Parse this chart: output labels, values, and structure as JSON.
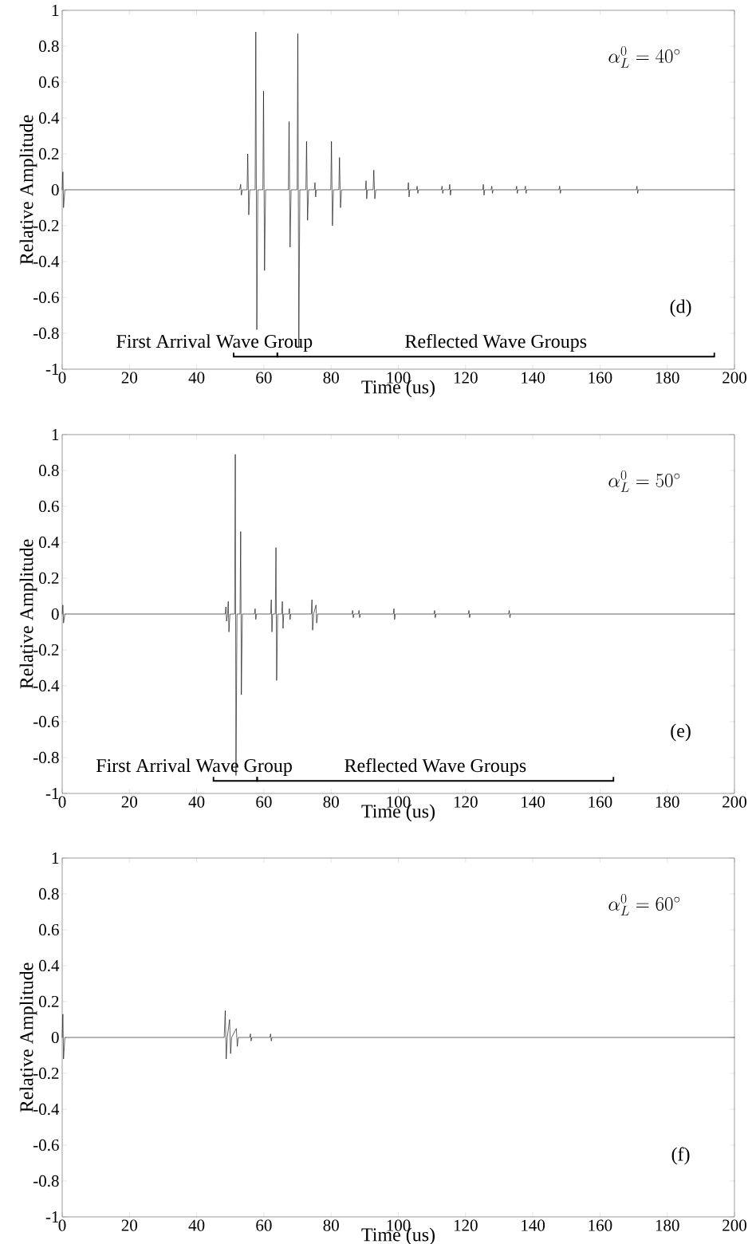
{
  "chart_data": [
    {
      "type": "line",
      "xlabel": "Time (us)",
      "ylabel": "Relative Amplitude",
      "xlim": [
        0,
        200
      ],
      "ylim": [
        -1,
        1
      ],
      "xticks": [
        0,
        20,
        40,
        60,
        80,
        100,
        120,
        140,
        160,
        180,
        200
      ],
      "yticks": [
        -1,
        -0.8,
        -0.6,
        -0.4,
        -0.2,
        0,
        0.2,
        0.4,
        0.6,
        0.8,
        1
      ],
      "marker": "none",
      "series": [
        {
          "color": "#000000",
          "x": [
            0,
            0.2,
            0.4,
            0.8,
            52.8,
            53.1,
            53.3,
            53.6,
            55.0,
            55.2,
            55.5,
            55.8,
            57.4,
            57.6,
            57.9,
            58.2,
            59.7,
            59.9,
            60.2,
            60.5,
            67.3,
            67.5,
            67.8,
            68.1,
            69.9,
            70.1,
            70.4,
            70.7,
            72.5,
            72.7,
            73.0,
            73.3,
            75.0,
            75.2,
            75.4,
            75.6,
            79.9,
            80.1,
            80.4,
            80.7,
            82.3,
            82.5,
            82.8,
            83.1,
            90.2,
            90.4,
            90.6,
            90.8,
            92.5,
            92.7,
            93.0,
            93.3,
            102.8,
            103.0,
            103.2,
            103.4,
            105.4,
            105.6,
            105.8,
            106.0,
            112.8,
            113.0,
            113.2,
            113.4,
            115.1,
            115.3,
            115.5,
            115.7,
            125.1,
            125.3,
            125.5,
            125.7,
            127.6,
            127.8,
            128.0,
            128.2,
            135.0,
            135.2,
            135.4,
            135.6,
            137.6,
            137.8,
            138.0,
            138.2,
            147.8,
            148.0,
            148.2,
            148.4,
            170.8,
            171.0,
            171.2,
            171.4,
            200
          ],
          "values": [
            0,
            0.1,
            -0.1,
            0,
            0,
            0.03,
            -0.03,
            0,
            0,
            0.2,
            -0.14,
            0,
            0,
            0.88,
            -0.78,
            0,
            0,
            0.55,
            -0.45,
            0,
            0,
            0.38,
            -0.32,
            0,
            0,
            0.87,
            -0.88,
            0,
            0,
            0.27,
            -0.17,
            0,
            0,
            0.04,
            -0.04,
            0,
            0,
            0.27,
            -0.2,
            0,
            0,
            0.18,
            -0.1,
            0,
            0,
            0.05,
            -0.05,
            0,
            0,
            0.11,
            -0.05,
            0,
            0,
            0.04,
            -0.04,
            0,
            0,
            0.02,
            -0.02,
            0,
            0,
            0.02,
            -0.02,
            0,
            0,
            0.03,
            -0.03,
            0,
            0,
            0.03,
            -0.03,
            0,
            0,
            0.02,
            -0.02,
            0,
            0,
            0.02,
            -0.02,
            0,
            0,
            0.02,
            -0.02,
            0,
            0,
            0.02,
            -0.02,
            0,
            0,
            0.02,
            -0.02,
            0,
            0
          ]
        }
      ],
      "annotations": [
        "\\alpha_L^{0} = 40^{\\circ}",
        "(d)",
        "First Arrival Wave Group",
        "Reflected Wave Groups"
      ]
    },
    {
      "type": "line",
      "xlabel": "Time (us)",
      "ylabel": "Relative Amplitude",
      "xlim": [
        0,
        200
      ],
      "ylim": [
        -1,
        1
      ],
      "xticks": [
        0,
        20,
        40,
        60,
        80,
        100,
        120,
        140,
        160,
        180,
        200
      ],
      "yticks": [
        -1,
        -0.8,
        -0.6,
        -0.4,
        -0.2,
        0,
        0.2,
        0.4,
        0.6,
        0.8,
        1
      ],
      "marker": "none",
      "series": [
        {
          "color": "#000000",
          "x": [
            0,
            0.2,
            0.4,
            0.8,
            48.5,
            48.7,
            48.9,
            49.2,
            49.4,
            49.6,
            49.9,
            51.3,
            51.5,
            51.7,
            52.0,
            52.9,
            53.1,
            53.3,
            53.6,
            57.2,
            57.4,
            57.6,
            57.8,
            62.0,
            62.2,
            62.4,
            62.6,
            63.4,
            63.6,
            63.8,
            64.1,
            65.3,
            65.5,
            65.7,
            65.9,
            67.4,
            67.6,
            67.8,
            68.0,
            74.1,
            74.3,
            74.5,
            74.8,
            75.5,
            75.7,
            76.0,
            86.2,
            86.4,
            86.6,
            86.8,
            88.1,
            88.3,
            88.5,
            88.7,
            98.5,
            98.7,
            98.9,
            99.1,
            110.6,
            110.8,
            111.0,
            111.2,
            120.8,
            121.0,
            121.2,
            121.4,
            132.8,
            133.0,
            133.2,
            133.4,
            200
          ],
          "values": [
            0,
            0.05,
            -0.05,
            0,
            0,
            0.04,
            -0.04,
            0,
            0.07,
            -0.1,
            0,
            0,
            0.89,
            -0.9,
            0,
            0,
            0.46,
            -0.45,
            0,
            0,
            0.03,
            -0.03,
            0,
            0,
            0.08,
            -0.1,
            0,
            0,
            0.37,
            -0.37,
            0,
            0,
            0.07,
            -0.08,
            0,
            0,
            0.03,
            -0.03,
            0,
            0,
            0.08,
            -0.09,
            0,
            0.05,
            -0.05,
            0,
            0,
            0.02,
            -0.02,
            0,
            0,
            0.02,
            -0.02,
            0,
            0,
            0.03,
            -0.03,
            0,
            0,
            0.02,
            -0.02,
            0,
            0,
            0.02,
            -0.02,
            0,
            0,
            0.02,
            -0.02,
            0,
            0
          ]
        }
      ],
      "annotations": [
        "\\alpha_L^{0} = 50^{\\circ}",
        "(e)",
        "First Arrival Wave Group",
        "Reflected Wave Groups"
      ]
    },
    {
      "type": "line",
      "xlabel": "Time (us)",
      "ylabel": "Relative Amplitude",
      "xlim": [
        0,
        200
      ],
      "ylim": [
        -1,
        1
      ],
      "xticks": [
        0,
        20,
        40,
        60,
        80,
        100,
        120,
        140,
        160,
        180,
        200
      ],
      "yticks": [
        -1,
        -0.8,
        -0.6,
        -0.4,
        -0.2,
        0,
        0.2,
        0.4,
        0.6,
        0.8,
        1
      ],
      "marker": "none",
      "series": [
        {
          "color": "#000000",
          "x": [
            0,
            0.2,
            0.4,
            0.8,
            48.2,
            48.5,
            48.8,
            49.1,
            49.8,
            50.1,
            50.4,
            51.8,
            52.1,
            52.4,
            55.8,
            56.0,
            56.2,
            56.4,
            61.8,
            62.0,
            62.2,
            62.4,
            200
          ],
          "values": [
            0,
            0.13,
            -0.12,
            0,
            0,
            0.15,
            -0.12,
            0,
            0.1,
            -0.09,
            0,
            0.05,
            -0.05,
            0,
            0,
            0.02,
            -0.02,
            0,
            0,
            0.02,
            -0.02,
            0,
            0
          ]
        }
      ],
      "annotations": [
        "\\alpha_L^{0} = 60^{\\circ}",
        "(f)"
      ]
    }
  ]
}
